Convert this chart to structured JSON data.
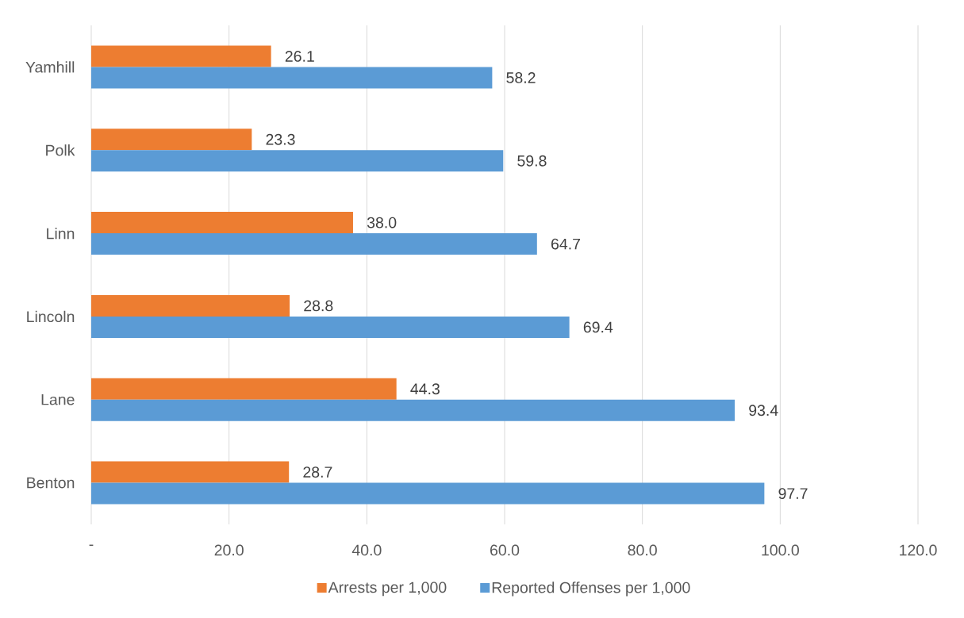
{
  "chart_data": {
    "type": "bar",
    "orientation": "horizontal",
    "categories": [
      "Yamhill",
      "Polk",
      "Linn",
      "Lincoln",
      "Lane",
      "Benton"
    ],
    "series": [
      {
        "name": "Arrests per 1,000",
        "color": "#ed7d31",
        "values": [
          26.1,
          23.3,
          38.0,
          28.8,
          44.3,
          28.7
        ],
        "value_labels": [
          "26.1",
          "23.3",
          "38.0",
          "28.8",
          "44.3",
          "28.7"
        ]
      },
      {
        "name": "Reported Offenses per 1,000",
        "color": "#5b9bd5",
        "values": [
          58.2,
          59.8,
          64.7,
          69.4,
          93.4,
          97.7
        ],
        "value_labels": [
          "58.2",
          "59.8",
          "64.7",
          "69.4",
          "93.4",
          "97.7"
        ]
      }
    ],
    "xlim": [
      0,
      120
    ],
    "xticks": [
      {
        "value": 0,
        "label": "-"
      },
      {
        "value": 20,
        "label": "20.0"
      },
      {
        "value": 40,
        "label": "40.0"
      },
      {
        "value": 60,
        "label": "60.0"
      },
      {
        "value": 80,
        "label": "80.0"
      },
      {
        "value": 100,
        "label": "100.0"
      },
      {
        "value": 120,
        "label": "120.0"
      }
    ],
    "grid": "x",
    "legend": "bottom"
  }
}
